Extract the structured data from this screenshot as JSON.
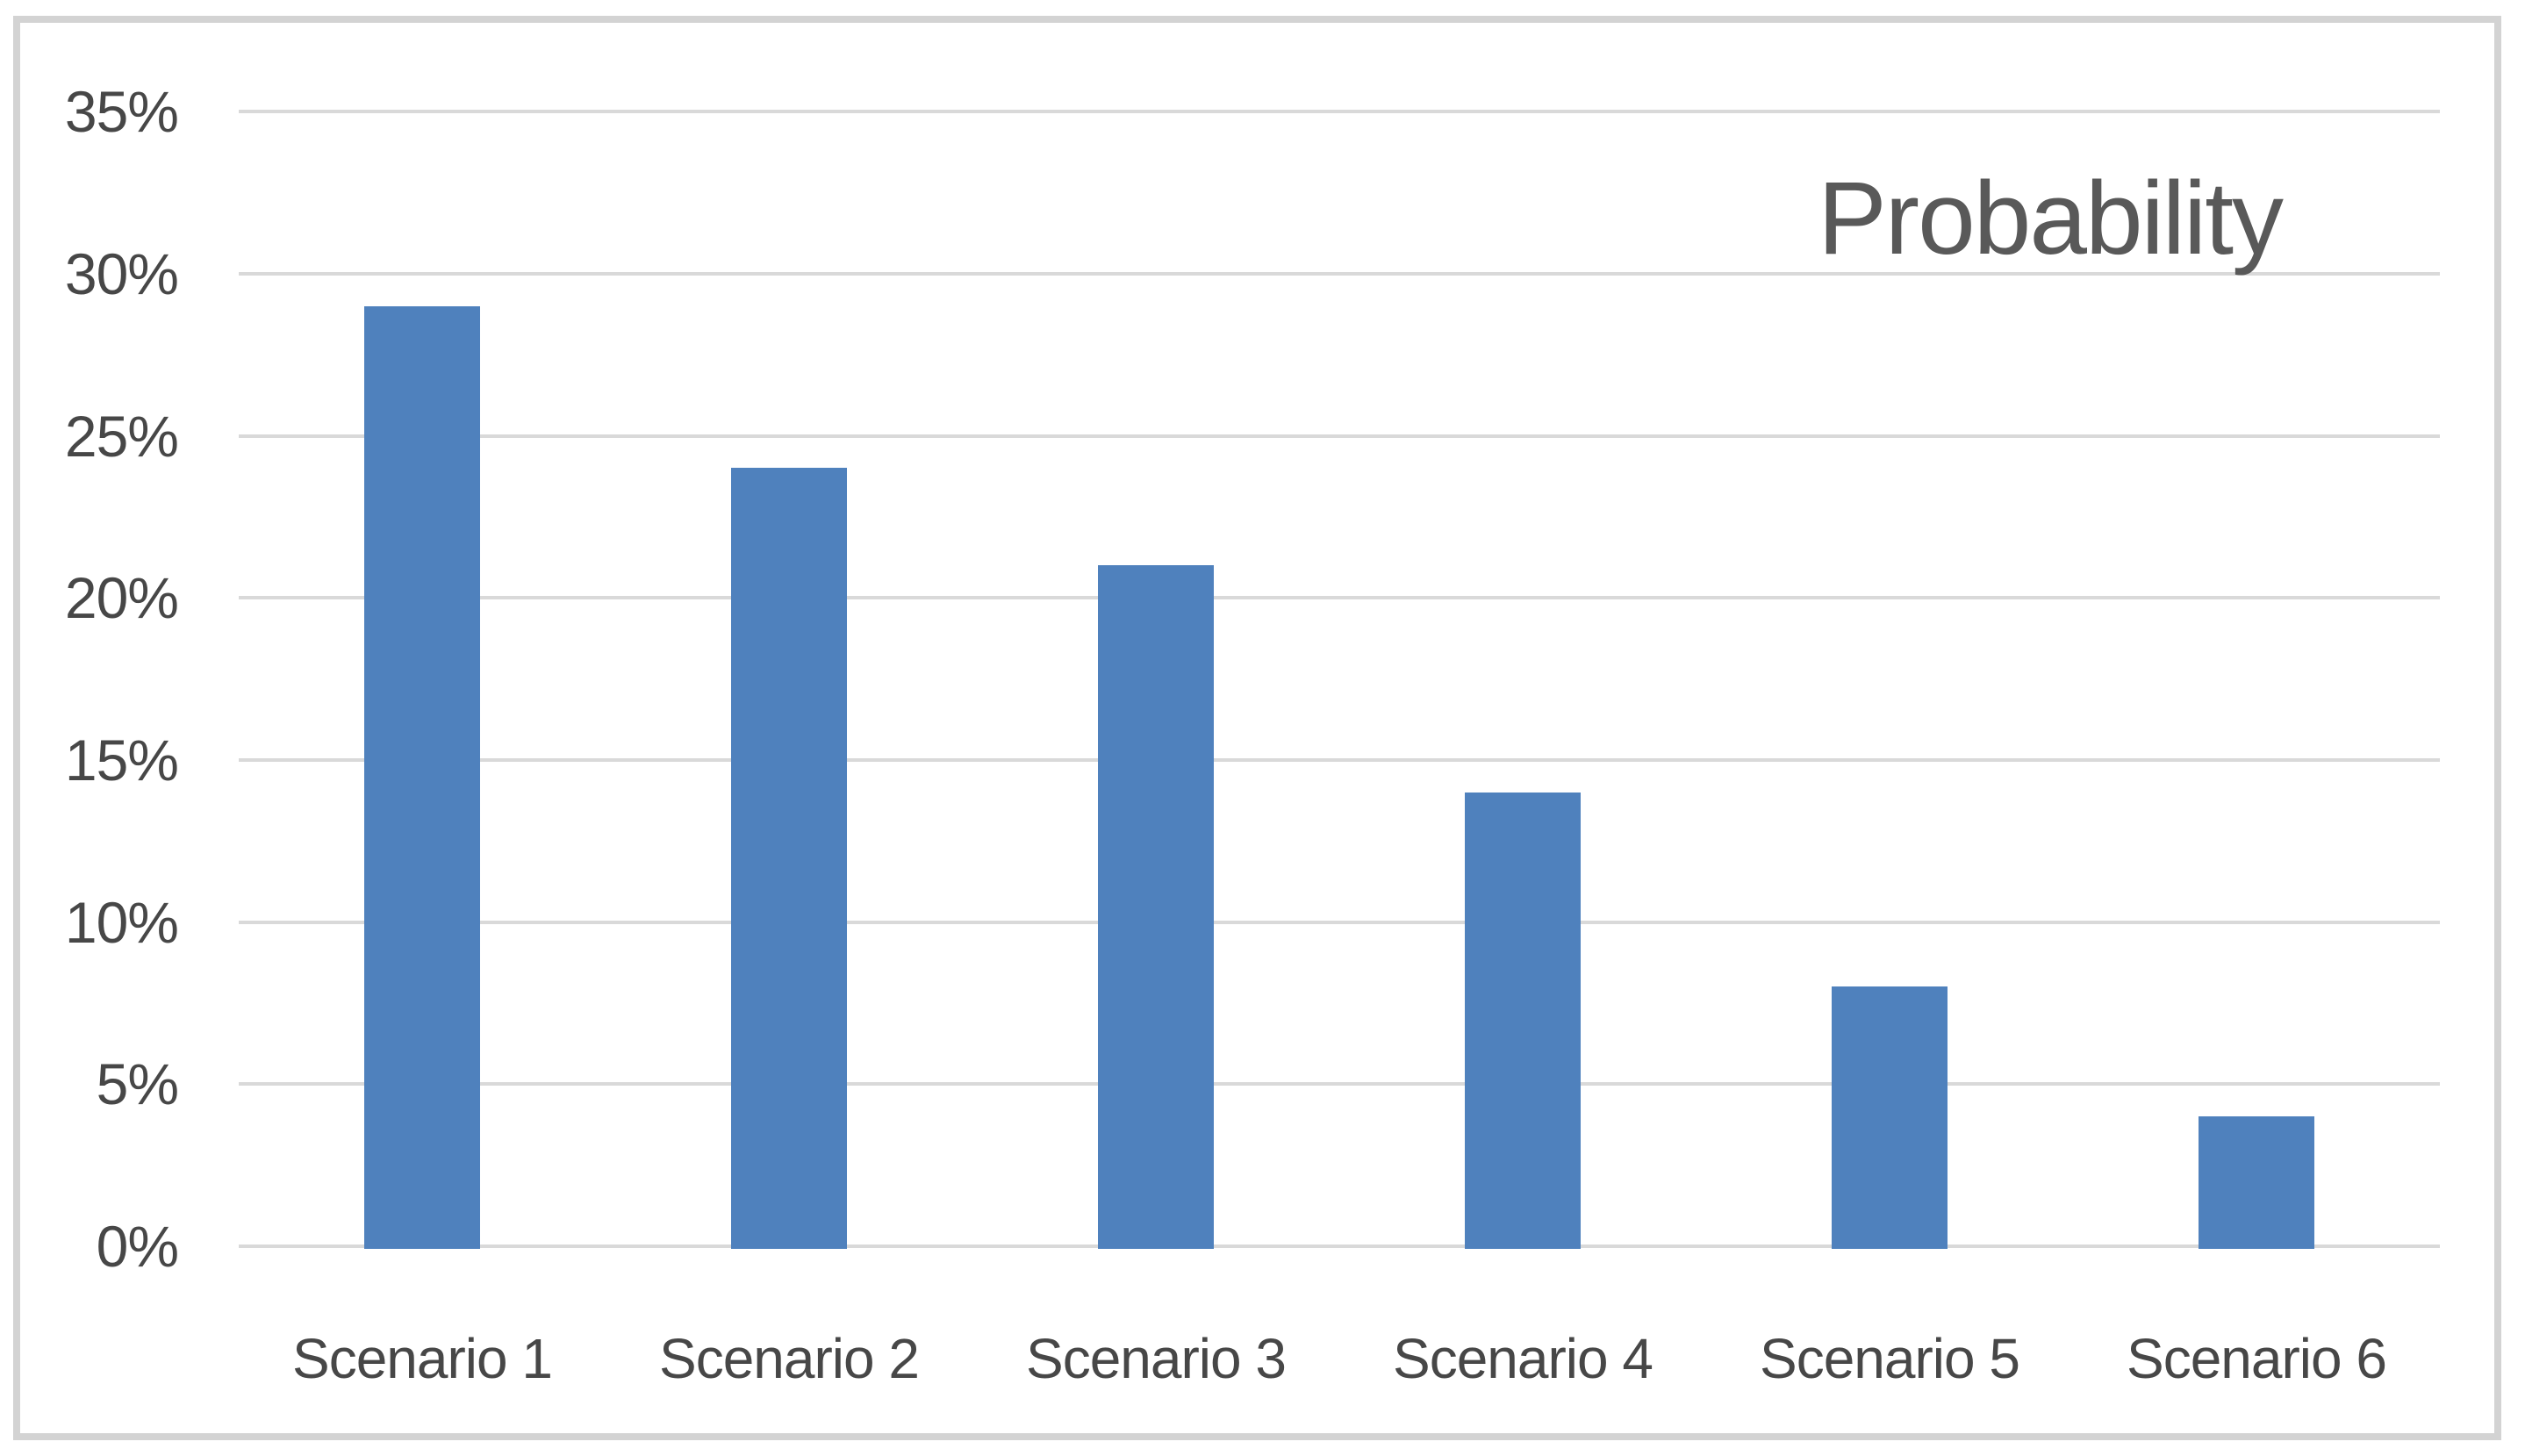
{
  "chart_data": {
    "type": "bar",
    "title": "Probability",
    "categories": [
      "Scenario 1",
      "Scenario 2",
      "Scenario 3",
      "Scenario 4",
      "Scenario 5",
      "Scenario 6"
    ],
    "values": [
      29,
      24,
      21,
      14,
      8,
      4
    ],
    "value_unit": "percent",
    "xlabel": "",
    "ylabel": "",
    "ylim": [
      0,
      35
    ],
    "y_axis": {
      "min": 0,
      "max": 35,
      "step": 5,
      "tick_values": [
        0,
        5,
        10,
        15,
        20,
        25,
        30,
        35
      ],
      "tick_labels": [
        "0%",
        "5%",
        "10%",
        "15%",
        "20%",
        "25%",
        "30%",
        "35%"
      ]
    },
    "grid": "horizontal",
    "legend": "none",
    "colors": {
      "bar": "#4f81bd",
      "gridline": "#d9d9d9",
      "axis_text": "#474747",
      "title_text": "#595959",
      "frame_border": "#d3d3d3",
      "background": "#ffffff"
    }
  }
}
